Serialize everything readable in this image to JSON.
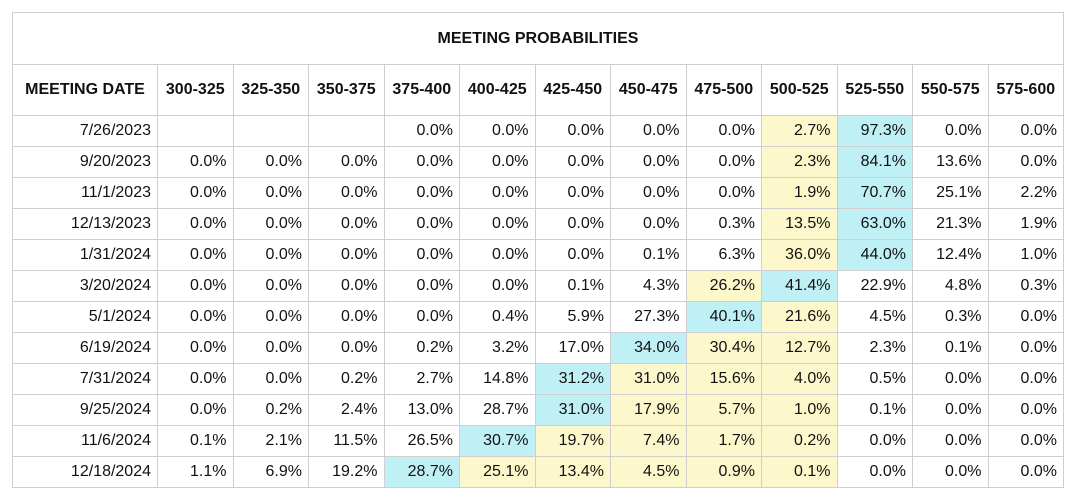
{
  "table": {
    "title": "MEETING PROBABILITIES",
    "header": [
      "MEETING DATE",
      "300-325",
      "325-350",
      "350-375",
      "375-400",
      "400-425",
      "425-450",
      "450-475",
      "475-500",
      "500-525",
      "525-550",
      "550-575",
      "575-600"
    ],
    "rows": [
      {
        "cells": [
          "7/26/2023",
          null,
          null,
          null,
          "0.0%",
          "0.0%",
          "0.0%",
          "0.0%",
          "0.0%",
          "2.7%",
          "97.3%",
          "0.0%",
          "0.0%"
        ],
        "fills": [
          null,
          null,
          null,
          null,
          null,
          null,
          null,
          null,
          null,
          "#fcf8cb",
          "#bff0f6",
          null,
          null
        ]
      },
      {
        "cells": [
          "9/20/2023",
          "0.0%",
          "0.0%",
          "0.0%",
          "0.0%",
          "0.0%",
          "0.0%",
          "0.0%",
          "0.0%",
          "2.3%",
          "84.1%",
          "13.6%",
          "0.0%"
        ],
        "fills": [
          null,
          null,
          null,
          null,
          null,
          null,
          null,
          null,
          null,
          "#fcf8cb",
          "#bff0f6",
          null,
          null
        ]
      },
      {
        "cells": [
          "11/1/2023",
          "0.0%",
          "0.0%",
          "0.0%",
          "0.0%",
          "0.0%",
          "0.0%",
          "0.0%",
          "0.0%",
          "1.9%",
          "70.7%",
          "25.1%",
          "2.2%"
        ],
        "fills": [
          null,
          null,
          null,
          null,
          null,
          null,
          null,
          null,
          null,
          "#fcf8cb",
          "#bff0f6",
          null,
          null
        ]
      },
      {
        "cells": [
          "12/13/2023",
          "0.0%",
          "0.0%",
          "0.0%",
          "0.0%",
          "0.0%",
          "0.0%",
          "0.0%",
          "0.3%",
          "13.5%",
          "63.0%",
          "21.3%",
          "1.9%"
        ],
        "fills": [
          null,
          null,
          null,
          null,
          null,
          null,
          null,
          null,
          null,
          "#fcf8cb",
          "#bff0f6",
          null,
          null
        ]
      },
      {
        "cells": [
          "1/31/2024",
          "0.0%",
          "0.0%",
          "0.0%",
          "0.0%",
          "0.0%",
          "0.0%",
          "0.1%",
          "6.3%",
          "36.0%",
          "44.0%",
          "12.4%",
          "1.0%"
        ],
        "fills": [
          null,
          null,
          null,
          null,
          null,
          null,
          null,
          null,
          null,
          "#fcf8cb",
          "#bff0f6",
          null,
          null
        ]
      },
      {
        "cells": [
          "3/20/2024",
          "0.0%",
          "0.0%",
          "0.0%",
          "0.0%",
          "0.0%",
          "0.1%",
          "4.3%",
          "26.2%",
          "41.4%",
          "22.9%",
          "4.8%",
          "0.3%"
        ],
        "fills": [
          null,
          null,
          null,
          null,
          null,
          null,
          null,
          null,
          "#fcf8cb",
          "#bff0f6",
          null,
          null,
          null
        ]
      },
      {
        "cells": [
          "5/1/2024",
          "0.0%",
          "0.0%",
          "0.0%",
          "0.0%",
          "0.4%",
          "5.9%",
          "27.3%",
          "40.1%",
          "21.6%",
          "4.5%",
          "0.3%",
          "0.0%"
        ],
        "fills": [
          null,
          null,
          null,
          null,
          null,
          null,
          null,
          null,
          "#bff0f6",
          "#fcf8cb",
          null,
          null,
          null
        ]
      },
      {
        "cells": [
          "6/19/2024",
          "0.0%",
          "0.0%",
          "0.0%",
          "0.2%",
          "3.2%",
          "17.0%",
          "34.0%",
          "30.4%",
          "12.7%",
          "2.3%",
          "0.1%",
          "0.0%"
        ],
        "fills": [
          null,
          null,
          null,
          null,
          null,
          null,
          null,
          "#bff0f6",
          "#fcf8cb",
          "#fcf8cb",
          null,
          null,
          null
        ]
      },
      {
        "cells": [
          "7/31/2024",
          "0.0%",
          "0.0%",
          "0.2%",
          "2.7%",
          "14.8%",
          "31.2%",
          "31.0%",
          "15.6%",
          "4.0%",
          "0.5%",
          "0.0%",
          "0.0%"
        ],
        "fills": [
          null,
          null,
          null,
          null,
          null,
          null,
          "#bff0f6",
          "#fcf8cb",
          "#fcf8cb",
          "#fcf8cb",
          null,
          null,
          null
        ]
      },
      {
        "cells": [
          "9/25/2024",
          "0.0%",
          "0.2%",
          "2.4%",
          "13.0%",
          "28.7%",
          "31.0%",
          "17.9%",
          "5.7%",
          "1.0%",
          "0.1%",
          "0.0%",
          "0.0%"
        ],
        "fills": [
          null,
          null,
          null,
          null,
          null,
          null,
          "#bff0f6",
          "#fcf8cb",
          "#fcf8cb",
          "#fcf8cb",
          null,
          null,
          null
        ]
      },
      {
        "cells": [
          "11/6/2024",
          "0.1%",
          "2.1%",
          "11.5%",
          "26.5%",
          "30.7%",
          "19.7%",
          "7.4%",
          "1.7%",
          "0.2%",
          "0.0%",
          "0.0%",
          "0.0%"
        ],
        "fills": [
          null,
          null,
          null,
          null,
          null,
          "#bff0f6",
          "#fcf8cb",
          "#fcf8cb",
          "#fcf8cb",
          "#fcf8cb",
          null,
          null,
          null
        ]
      },
      {
        "cells": [
          "12/18/2024",
          "1.1%",
          "6.9%",
          "19.2%",
          "28.7%",
          "25.1%",
          "13.4%",
          "4.5%",
          "0.9%",
          "0.1%",
          "0.0%",
          "0.0%",
          "0.0%"
        ],
        "fills": [
          null,
          null,
          null,
          null,
          "#bff0f6",
          "#fcf8cb",
          "#fcf8cb",
          "#fcf8cb",
          "#fcf8cb",
          "#fcf8cb",
          null,
          null,
          null
        ]
      }
    ]
  }
}
